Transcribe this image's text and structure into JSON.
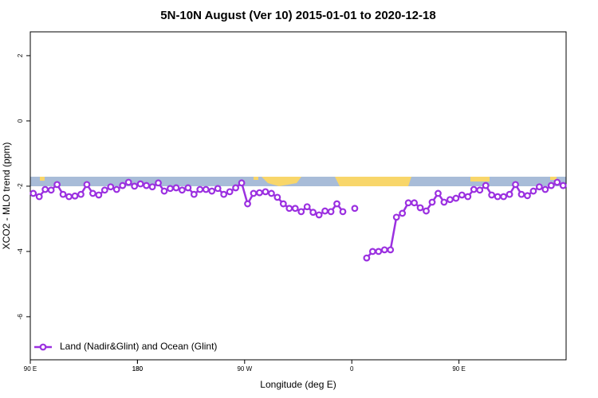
{
  "chart_data": {
    "type": "line",
    "title": "5N-10N August (Ver 10)   2015-01-01 to 2020-12-18",
    "x_label": "Longitude (deg E)",
    "y_label": "XCO2 - MLO trend (ppm)",
    "x": [
      92.5,
      97.5,
      102.5,
      107.5,
      112.5,
      117.5,
      122.5,
      127.5,
      132.5,
      137.5,
      142.5,
      147.5,
      152.5,
      157.5,
      162.5,
      167.5,
      172.5,
      177.5,
      182.5,
      187.5,
      192.5,
      197.5,
      202.5,
      207.5,
      212.5,
      217.5,
      222.5,
      227.5,
      232.5,
      237.5,
      242.5,
      247.5,
      252.5,
      257.5,
      262.5,
      267.5,
      272.5,
      277.5,
      282.5,
      287.5,
      292.5,
      297.5,
      302.5,
      307.5,
      312.5,
      317.5,
      322.5,
      327.5,
      332.5,
      337.5,
      342.5,
      347.5,
      352.5,
      357.5,
      362.5,
      367.5,
      372.5,
      377.5,
      382.5,
      387.5,
      392.5,
      397.5,
      402.5,
      407.5,
      412.5,
      417.5,
      422.5,
      427.5,
      432.5,
      437.5,
      442.5,
      447.5,
      452.5,
      457.5,
      462.5,
      467.5,
      472.5,
      477.5,
      482.5,
      487.5,
      492.5,
      497.5,
      502.5,
      507.5,
      512.5,
      517.5,
      522.5,
      527.5,
      532.5,
      537.5
    ],
    "series": [
      {
        "name": "Land (Nadir&Glint) and Ocean (Glint)",
        "color": "#9b30e0",
        "values": [
          -2.22,
          -2.32,
          -2.1,
          -2.12,
          -1.95,
          -2.25,
          -2.32,
          -2.3,
          -2.25,
          -1.95,
          -2.22,
          -2.27,
          -2.12,
          -2.02,
          -2.1,
          -1.98,
          -1.88,
          -2.0,
          -1.93,
          -1.98,
          -2.02,
          -1.9,
          -2.15,
          -2.07,
          -2.05,
          -2.12,
          -2.05,
          -2.25,
          -2.1,
          -2.1,
          -2.15,
          -2.07,
          -2.25,
          -2.17,
          -2.05,
          -1.9,
          -2.54,
          -2.22,
          -2.2,
          -2.17,
          -2.22,
          -2.34,
          -2.54,
          -2.68,
          -2.68,
          -2.78,
          -2.63,
          -2.8,
          -2.88,
          -2.76,
          -2.78,
          -2.54,
          -2.78,
          null,
          -2.68,
          null,
          -4.2,
          -4.0,
          -4.0,
          -3.95,
          -3.95,
          -2.95,
          -2.83,
          -2.51,
          -2.51,
          -2.66,
          -2.76,
          -2.49,
          -2.22,
          -2.49,
          -2.41,
          -2.37,
          -2.27,
          -2.32,
          -2.1,
          -2.12,
          -1.98,
          -2.27,
          -2.32,
          -2.32,
          -2.25,
          -1.95,
          -2.25,
          -2.29,
          -2.15,
          -2.02,
          -2.1,
          -1.98,
          -1.88,
          -1.98
        ]
      }
    ],
    "xlim": [
      90,
      540
    ],
    "xticks": [
      {
        "value": 90,
        "label": "90 E"
      },
      180,
      {
        "value": 270,
        "label": "90 W"
      },
      {
        "value": 360,
        "label": "0"
      },
      {
        "value": 450,
        "label": "90 E"
      },
      180.0001
    ],
    "ylim": [
      -7.32,
      2.73
    ],
    "yticks": [
      2,
      0,
      -2,
      -4,
      -6
    ],
    "legend": "bottom-left"
  }
}
